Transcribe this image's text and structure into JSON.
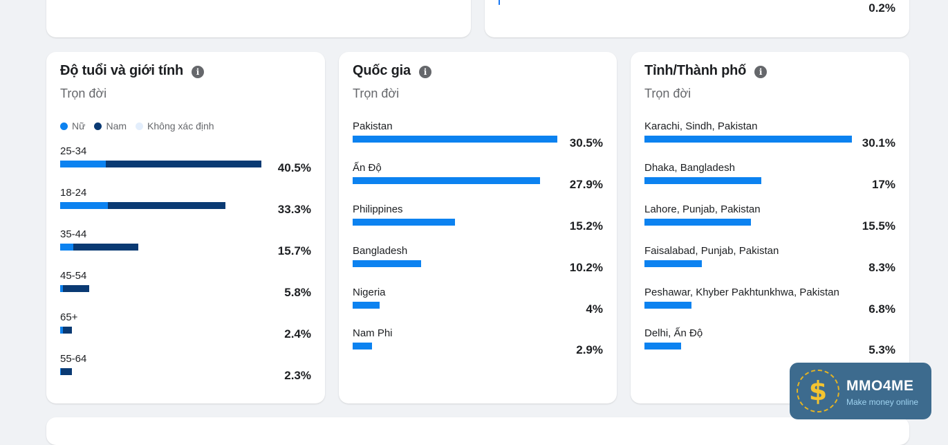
{
  "top_right_value": "0.2%",
  "age_gender": {
    "title": "Độ tuổi và giới tính",
    "subtitle": "Trọn đời",
    "legend": [
      {
        "label": "Nữ",
        "color": "#0c82f0"
      },
      {
        "label": "Nam",
        "color": "#0a3a73"
      },
      {
        "label": "Không xác định",
        "color": "#e3eefc"
      }
    ],
    "rows": [
      {
        "label": "25-34",
        "value": "40.5%",
        "female_pct": 9.2,
        "male_pct": 31.3
      },
      {
        "label": "18-24",
        "value": "33.3%",
        "female_pct": 9.6,
        "male_pct": 23.7
      },
      {
        "label": "35-44",
        "value": "15.7%",
        "female_pct": 2.6,
        "male_pct": 13.1
      },
      {
        "label": "45-54",
        "value": "5.8%",
        "female_pct": 0.6,
        "male_pct": 5.2
      },
      {
        "label": "65+",
        "value": "2.4%",
        "female_pct": 0.6,
        "male_pct": 1.8
      },
      {
        "label": "55-64",
        "value": "2.3%",
        "female_pct": 0.1,
        "male_pct": 2.2
      }
    ]
  },
  "country": {
    "title": "Quốc gia",
    "subtitle": "Trọn đời",
    "rows": [
      {
        "label": "Pakistan",
        "value": "30.5%",
        "pct": 30.5
      },
      {
        "label": "Ấn Độ",
        "value": "27.9%",
        "pct": 27.9
      },
      {
        "label": "Philippines",
        "value": "15.2%",
        "pct": 15.2
      },
      {
        "label": "Bangladesh",
        "value": "10.2%",
        "pct": 10.2
      },
      {
        "label": "Nigeria",
        "value": "4%",
        "pct": 4
      },
      {
        "label": "Nam Phi",
        "value": "2.9%",
        "pct": 2.9
      }
    ]
  },
  "city": {
    "title": "Tỉnh/Thành phố",
    "subtitle": "Trọn đời",
    "rows": [
      {
        "label": "Karachi, Sindh, Pakistan",
        "value": "30.1%",
        "pct": 30.1
      },
      {
        "label": "Dhaka, Bangladesh",
        "value": "17%",
        "pct": 17
      },
      {
        "label": "Lahore, Punjab, Pakistan",
        "value": "15.5%",
        "pct": 15.5
      },
      {
        "label": "Faisalabad, Punjab, Pakistan",
        "value": "8.3%",
        "pct": 8.3
      },
      {
        "label": "Peshawar, Khyber Pakhtunkhwa, Pakistan",
        "value": "6.8%",
        "pct": 6.8
      },
      {
        "label": "Delhi, Ấn Độ",
        "value": "5.3%",
        "pct": 5.3
      }
    ]
  },
  "watermark": {
    "brand": "MMO4ME",
    "tagline": "Make money online",
    "icon": "dollar-icon"
  }
}
